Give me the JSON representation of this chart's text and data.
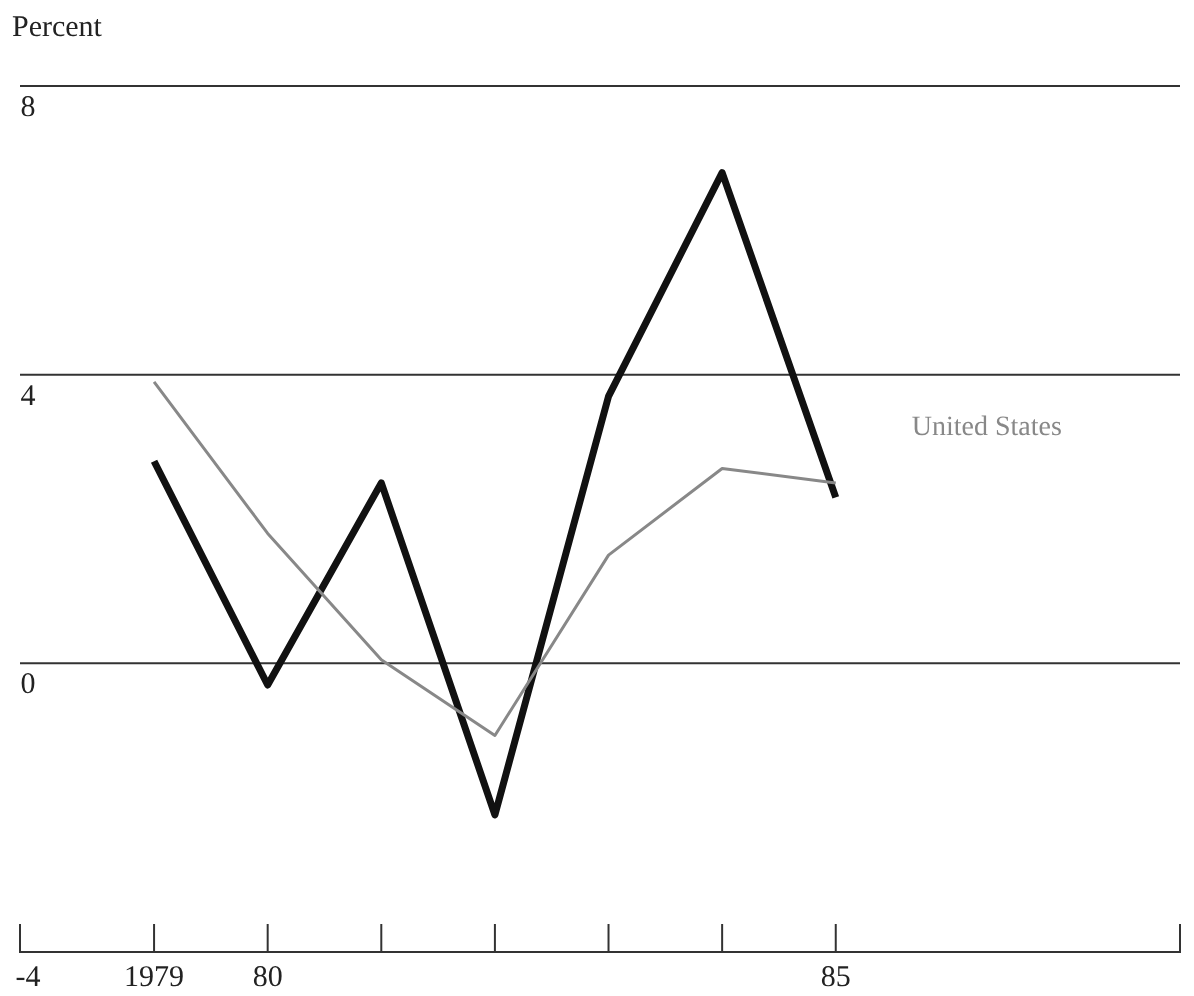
{
  "chart_data": {
    "type": "line",
    "ylabel": "Percent",
    "x": [
      1979,
      1980,
      1981,
      1982,
      1983,
      1984,
      1985
    ],
    "series": [
      {
        "color": "#111111",
        "values": [
          2.8,
          -0.3,
          2.5,
          -2.1,
          3.7,
          6.8,
          2.3
        ]
      },
      {
        "name": "United States",
        "color": "#888888",
        "values": [
          3.9,
          1.8,
          0.05,
          -1.0,
          1.5,
          2.7,
          2.5
        ]
      }
    ],
    "xlim": [
      1977.82,
      1988.03
    ],
    "ylim": [
      -4,
      8
    ],
    "xticks": [
      {
        "value": 1979,
        "label": "1979"
      },
      {
        "value": 1980,
        "label": "80"
      },
      {
        "value": 1981,
        "label": null
      },
      {
        "value": 1982,
        "label": null
      },
      {
        "value": 1983,
        "label": null
      },
      {
        "value": 1984,
        "label": null
      },
      {
        "value": 1985,
        "label": "85"
      }
    ],
    "yticks": [
      -4,
      0,
      4,
      8
    ],
    "grid": "y",
    "marker": "none",
    "line_style": "solid"
  }
}
